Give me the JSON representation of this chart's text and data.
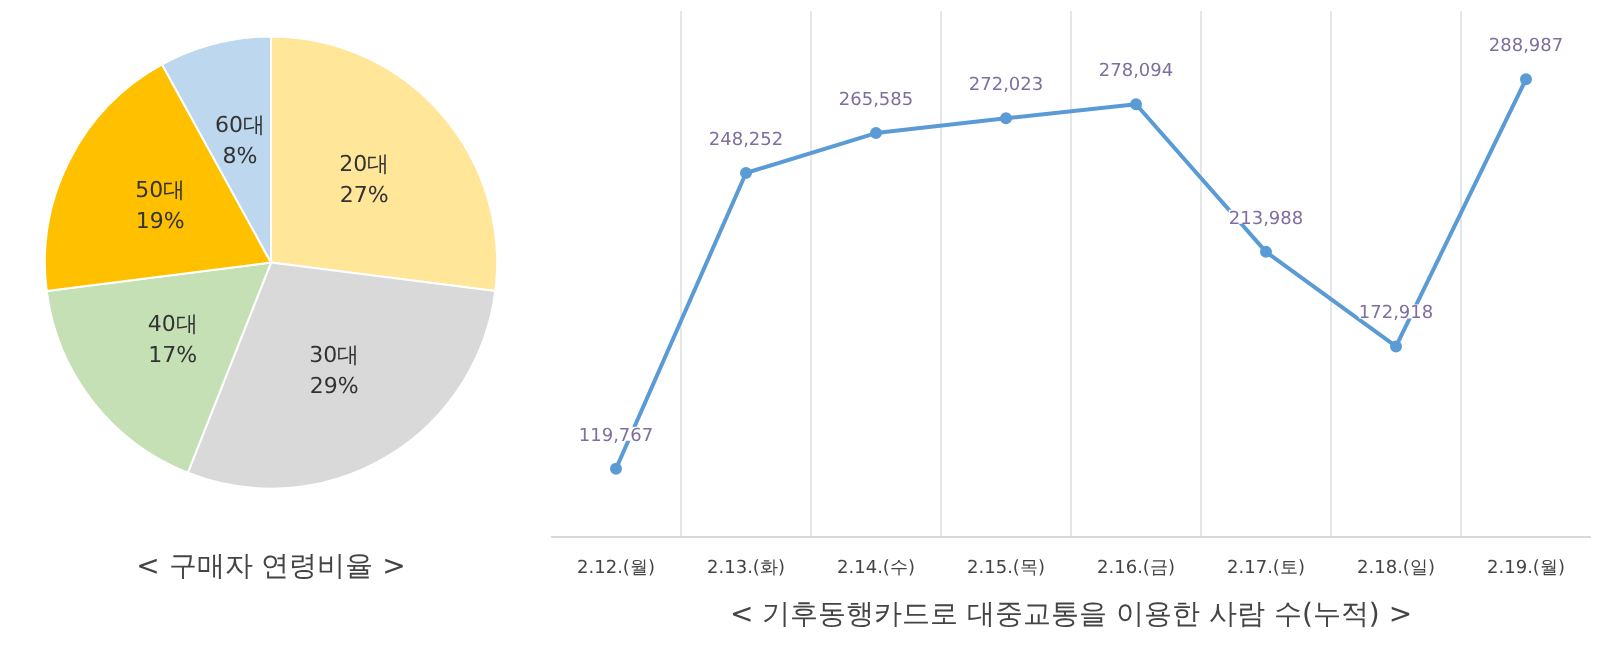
{
  "chart_data": [
    {
      "type": "pie",
      "title": "< 구매자 연령비율 >",
      "categories": [
        "20대",
        "30대",
        "40대",
        "50대",
        "60대"
      ],
      "values": [
        27,
        29,
        17,
        19,
        8
      ],
      "colors": [
        "#ffe699",
        "#d9d9d9",
        "#c5e0b4",
        "#ffc000",
        "#bdd7ee"
      ],
      "value_labels": [
        "27%",
        "29%",
        "17%",
        "19%",
        "8%"
      ]
    },
    {
      "type": "line",
      "title": "< 기후동행카드로 대중교통을 이용한 사람 수(누적) >",
      "categories": [
        "2.12.(월)",
        "2.13.(화)",
        "2.14.(수)",
        "2.15.(목)",
        "2.16.(금)",
        "2.17.(토)",
        "2.18.(일)",
        "2.19.(월)"
      ],
      "series": [
        {
          "color": "#5b9bd5",
          "values": [
            119767,
            248252,
            265585,
            272023,
            278094,
            213988,
            172918,
            288987
          ],
          "value_labels": [
            "119,767",
            "248,252",
            "265,585",
            "272,023",
            "278,094",
            "213,988",
            "172,918",
            "288,987"
          ]
        }
      ],
      "tick_labels": "x",
      "grid": "x",
      "marker": "circle",
      "line_style": "solid"
    }
  ]
}
